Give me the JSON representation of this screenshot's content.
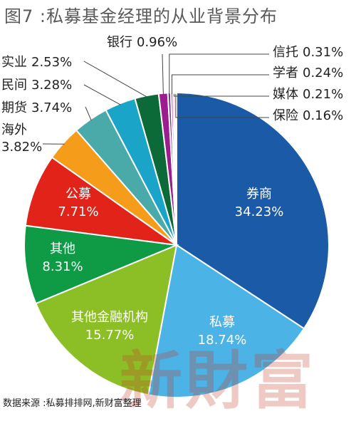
{
  "title": "图7 :私募基金经理的从业背景分布",
  "source": "数据来源 :私募排排网,新财富整理",
  "watermark": "新財富",
  "colors": {
    "title": "#5a5a5a",
    "leader": "#444444",
    "outer_label": "#222222",
    "inner_label": "#ffffff"
  },
  "chart_data": {
    "type": "pie",
    "title": "私募基金经理的从业背景分布",
    "slices": [
      {
        "name": "券商",
        "value": 34.23,
        "label": "34.23%",
        "color": "#1b5aa6",
        "label_pos": "inside"
      },
      {
        "name": "私募",
        "value": 18.74,
        "label": "18.74%",
        "color": "#4bb3e6",
        "label_pos": "inside"
      },
      {
        "name": "其他金融机构",
        "value": 15.77,
        "label": "15.77%",
        "color": "#8cbf26",
        "label_pos": "inside"
      },
      {
        "name": "其他",
        "value": 8.31,
        "label": "8.31%",
        "color": "#0f9a46",
        "label_pos": "inside"
      },
      {
        "name": "公募",
        "value": 7.71,
        "label": "7.71%",
        "color": "#e2231a",
        "label_pos": "inside"
      },
      {
        "name": "海外",
        "value": 3.82,
        "label": "3.82%",
        "color": "#f59c1a",
        "label_pos": "outside"
      },
      {
        "name": "期货",
        "value": 3.74,
        "label": "3.74%",
        "color": "#4aa9a9",
        "label_pos": "outside"
      },
      {
        "name": "民间",
        "value": 3.28,
        "label": "3.28%",
        "color": "#19a4c8",
        "label_pos": "outside"
      },
      {
        "name": "实业",
        "value": 2.53,
        "label": "2.53%",
        "color": "#0c6a38",
        "label_pos": "outside"
      },
      {
        "name": "银行",
        "value": 0.96,
        "label": "0.96%",
        "color": "#9c1e8c",
        "label_pos": "outside"
      },
      {
        "name": "信托",
        "value": 0.31,
        "label": "0.31%",
        "color": "#6a3a8a",
        "label_pos": "outside"
      },
      {
        "name": "学者",
        "value": 0.24,
        "label": "0.24%",
        "color": "#d63c8e",
        "label_pos": "outside"
      },
      {
        "name": "媒体",
        "value": 0.21,
        "label": "0.21%",
        "color": "#f4b3c8",
        "label_pos": "outside"
      },
      {
        "name": "保险",
        "value": 0.16,
        "label": "0.16%",
        "color": "#7a2a2a",
        "label_pos": "outside"
      }
    ]
  }
}
